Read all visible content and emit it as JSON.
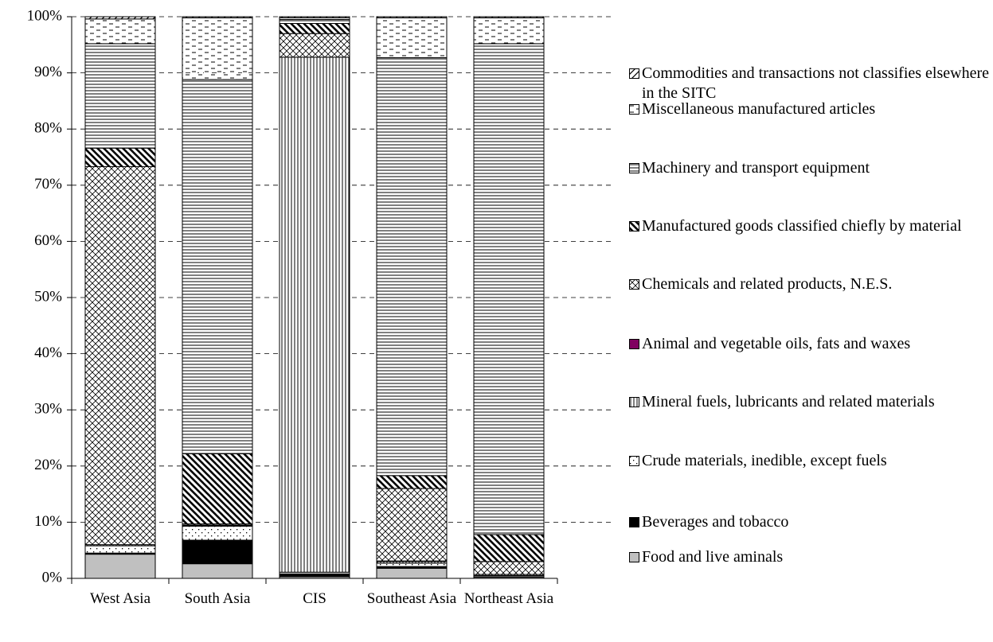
{
  "chart_data": {
    "type": "stacked_bar_100",
    "categories": [
      "West Asia",
      "South Asia",
      "CIS",
      "Southeast Asia",
      "Northeast Asia"
    ],
    "series": [
      {
        "name": "Food and live aminals",
        "color": "#c0c0c0",
        "values": [
          4.3,
          2.6,
          0.3,
          1.8,
          0.2
        ]
      },
      {
        "name": "Beverages and tobacco",
        "color": "#000000",
        "values": [
          0.2,
          4.2,
          0.5,
          0.3,
          0.1
        ]
      },
      {
        "name": "Crude materials, inedible, except fuels",
        "color": "#000000",
        "values": [
          1.3,
          2.5,
          0.3,
          0.6,
          0.2
        ]
      },
      {
        "name": "Mineral fuels, lubricants and related materials",
        "color": "#000000",
        "values": [
          0.2,
          0.1,
          91.7,
          0.3,
          0.2
        ]
      },
      {
        "name": "Animal and vegetable oils, fats and waxes",
        "color": "#800060",
        "values": [
          0,
          0.1,
          0,
          0.1,
          0
        ]
      },
      {
        "name": "Chemicals and related products, N.E.S.",
        "color": "#000000",
        "values": [
          67.3,
          0.2,
          4.2,
          12.9,
          2.3
        ]
      },
      {
        "name": "Manufactured goods classified chiefly by material",
        "color": "#000000",
        "values": [
          3.3,
          12.5,
          1.8,
          2.3,
          4.8
        ]
      },
      {
        "name": "Machinery and transport equipment",
        "color": "#000000",
        "values": [
          18.6,
          66.6,
          0.7,
          74.4,
          87.4
        ]
      },
      {
        "name": "Miscellaneous manufactured articles",
        "color": "#000000",
        "values": [
          4.4,
          11,
          0.3,
          7.1,
          4.6
        ]
      },
      {
        "name": "Commodities and transactions not classifies elsewhere in the SITC",
        "color": "#000000",
        "values": [
          0.4,
          0.2,
          0.2,
          0.2,
          0.2
        ]
      }
    ],
    "ylim": [
      0,
      100
    ],
    "yticks": [
      {
        "value": 0,
        "label": "0%"
      },
      {
        "value": 10,
        "label": "10%"
      },
      {
        "value": 20,
        "label": "20%"
      },
      {
        "value": 30,
        "label": "30%"
      },
      {
        "value": 40,
        "label": "40%"
      },
      {
        "value": 50,
        "label": "50%"
      },
      {
        "value": 60,
        "label": "60%"
      },
      {
        "value": 70,
        "label": "70%"
      },
      {
        "value": 80,
        "label": "80%"
      },
      {
        "value": 90,
        "label": "90%"
      },
      {
        "value": 100,
        "label": "100%"
      }
    ],
    "grid": true,
    "legend": "right"
  }
}
